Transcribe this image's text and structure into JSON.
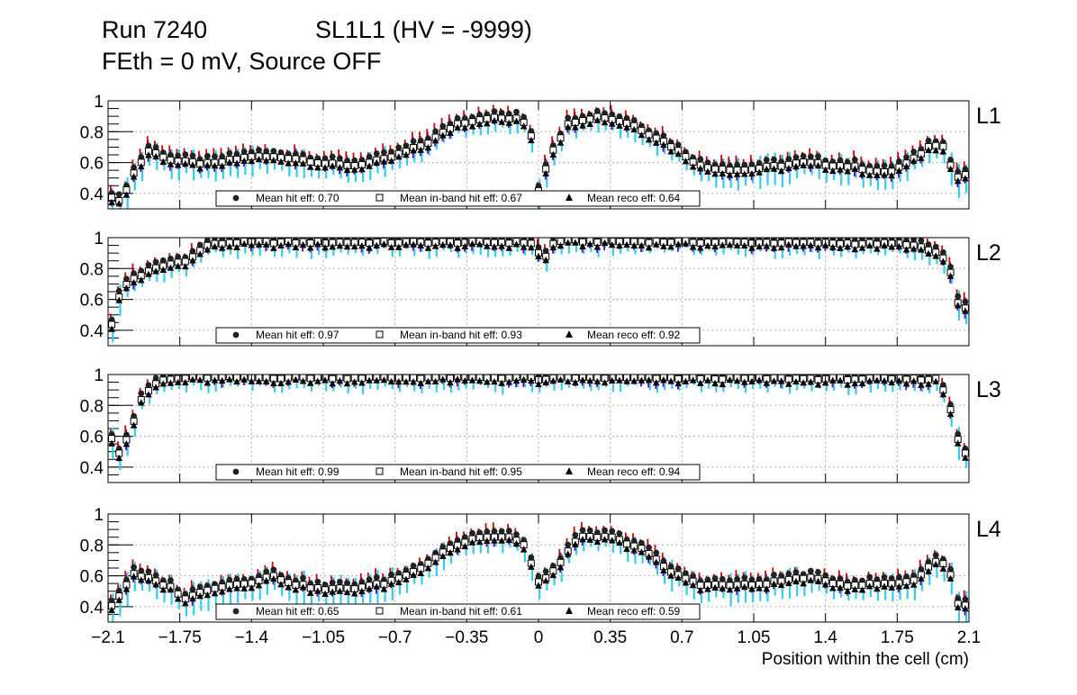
{
  "title": {
    "run": "Run 7240",
    "chamber": "SL1L1 (HV = -9999)",
    "line2": "FEth = 0 mV, Source OFF"
  },
  "colors": {
    "hit_err": "#cc0000",
    "inband_err": "#6600cc",
    "reco_err": "#33ccee",
    "grid": "#b0b0b0"
  },
  "legend_labels": {
    "hit": "Mean hit  eff: ",
    "inband": "Mean in-band hit eff: ",
    "reco": "Mean reco eff: "
  },
  "chart_data": {
    "type": "scatter",
    "xlabel": "Position within the cell (cm)",
    "xlim": [
      -2.1,
      2.1
    ],
    "ylim": [
      0.3,
      1.0
    ],
    "x_ticks": [
      "−2.1",
      "−1.75",
      "−1.4",
      "−1.05",
      "−0.7",
      "−0.35",
      "0",
      "0.35",
      "0.7",
      "1.05",
      "1.4",
      "1.75",
      "2.1"
    ],
    "x_tick_values": [
      -2.1,
      -1.75,
      -1.4,
      -1.05,
      -0.7,
      -0.35,
      0,
      0.35,
      0.7,
      1.05,
      1.4,
      1.75,
      2.1
    ],
    "y_ticks": [
      "0.4",
      "0.6",
      "0.8",
      "1"
    ],
    "y_tick_values": [
      0.4,
      0.6,
      0.8,
      1.0
    ],
    "grid": true,
    "panels": [
      {
        "label": "L1",
        "mean_hit": "0.70",
        "mean_inband": "0.67",
        "mean_reco": "0.64",
        "profile": [
          [
            -2.1,
            0.42
          ],
          [
            -2.04,
            0.36
          ],
          [
            -1.98,
            0.54
          ],
          [
            -1.9,
            0.7
          ],
          [
            -1.78,
            0.63
          ],
          [
            -1.6,
            0.61
          ],
          [
            -1.4,
            0.66
          ],
          [
            -1.2,
            0.65
          ],
          [
            -1.02,
            0.61
          ],
          [
            -0.9,
            0.6
          ],
          [
            -0.75,
            0.64
          ],
          [
            -0.55,
            0.74
          ],
          [
            -0.4,
            0.87
          ],
          [
            -0.25,
            0.91
          ],
          [
            -0.08,
            0.9
          ],
          [
            -0.02,
            0.76
          ],
          [
            0.0,
            0.44
          ],
          [
            0.06,
            0.68
          ],
          [
            0.15,
            0.88
          ],
          [
            0.3,
            0.92
          ],
          [
            0.45,
            0.87
          ],
          [
            0.62,
            0.75
          ],
          [
            0.8,
            0.59
          ],
          [
            1.0,
            0.57
          ],
          [
            1.3,
            0.62
          ],
          [
            1.55,
            0.59
          ],
          [
            1.7,
            0.55
          ],
          [
            1.82,
            0.63
          ],
          [
            1.92,
            0.74
          ],
          [
            1.98,
            0.73
          ],
          [
            2.03,
            0.52
          ],
          [
            2.1,
            0.55
          ]
        ]
      },
      {
        "label": "L2",
        "mean_hit": "0.97",
        "mean_inband": "0.93",
        "mean_reco": "0.92",
        "profile": [
          [
            -2.1,
            0.35
          ],
          [
            -2.06,
            0.6
          ],
          [
            -2.0,
            0.74
          ],
          [
            -1.85,
            0.83
          ],
          [
            -1.7,
            0.88
          ],
          [
            -1.62,
            0.97
          ],
          [
            -1.5,
            0.99
          ],
          [
            -0.05,
            0.99
          ],
          [
            -0.02,
            0.98
          ],
          [
            0.02,
            0.86
          ],
          [
            0.08,
            1.0
          ],
          [
            1.8,
            0.98
          ],
          [
            1.95,
            0.92
          ],
          [
            2.0,
            0.85
          ],
          [
            2.05,
            0.57
          ],
          [
            2.1,
            0.55
          ]
        ]
      },
      {
        "label": "L3",
        "mean_hit": "0.99",
        "mean_inband": "0.95",
        "mean_reco": "0.94",
        "profile": [
          [
            -2.1,
            0.66
          ],
          [
            -2.04,
            0.5
          ],
          [
            -1.98,
            0.7
          ],
          [
            -1.93,
            0.88
          ],
          [
            -1.85,
            0.98
          ],
          [
            -1.7,
            1.0
          ],
          [
            -0.03,
            1.0
          ],
          [
            0.03,
            0.98
          ],
          [
            0.1,
            1.0
          ],
          [
            1.95,
            0.99
          ],
          [
            2.0,
            0.85
          ],
          [
            2.05,
            0.58
          ],
          [
            2.1,
            0.48
          ]
        ]
      },
      {
        "label": "L4",
        "mean_hit": "0.65",
        "mean_inband": "0.61",
        "mean_reco": "0.59",
        "profile": [
          [
            -2.1,
            0.4
          ],
          [
            -2.04,
            0.5
          ],
          [
            -1.98,
            0.63
          ],
          [
            -1.9,
            0.6
          ],
          [
            -1.8,
            0.55
          ],
          [
            -1.72,
            0.47
          ],
          [
            -1.6,
            0.54
          ],
          [
            -1.4,
            0.58
          ],
          [
            -1.3,
            0.62
          ],
          [
            -1.2,
            0.57
          ],
          [
            -1.05,
            0.53
          ],
          [
            -0.9,
            0.54
          ],
          [
            -0.75,
            0.57
          ],
          [
            -0.6,
            0.65
          ],
          [
            -0.45,
            0.79
          ],
          [
            -0.3,
            0.87
          ],
          [
            -0.15,
            0.87
          ],
          [
            -0.06,
            0.82
          ],
          [
            -0.03,
            0.67
          ],
          [
            0.0,
            0.58
          ],
          [
            0.04,
            0.6
          ],
          [
            0.1,
            0.7
          ],
          [
            0.2,
            0.87
          ],
          [
            0.35,
            0.87
          ],
          [
            0.5,
            0.8
          ],
          [
            0.65,
            0.64
          ],
          [
            0.8,
            0.56
          ],
          [
            1.05,
            0.56
          ],
          [
            1.3,
            0.61
          ],
          [
            1.5,
            0.56
          ],
          [
            1.75,
            0.57
          ],
          [
            1.85,
            0.6
          ],
          [
            1.9,
            0.68
          ],
          [
            1.96,
            0.72
          ],
          [
            2.0,
            0.68
          ],
          [
            2.05,
            0.42
          ],
          [
            2.1,
            0.43
          ]
        ]
      }
    ]
  }
}
